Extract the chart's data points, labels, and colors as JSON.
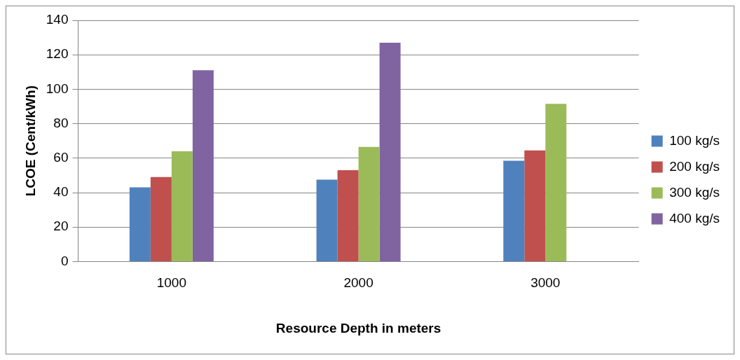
{
  "chart_data": {
    "type": "bar",
    "xlabel": "Resource Depth in meters",
    "ylabel": "LCOE (Cent/kWh)",
    "categories": [
      "1000",
      "2000",
      "3000"
    ],
    "series": [
      {
        "name": "100 kg/s",
        "color": "#4f81bd",
        "values": [
          43,
          47.5,
          58.5
        ]
      },
      {
        "name": "200 kg/s",
        "color": "#c0504d",
        "values": [
          49,
          53,
          64.5
        ]
      },
      {
        "name": "300 kg/s",
        "color": "#9bbb59",
        "values": [
          64,
          66.5,
          91.5
        ]
      },
      {
        "name": "400 kg/s",
        "color": "#8064a2",
        "values": [
          111,
          127,
          null
        ]
      }
    ],
    "ylim": [
      0,
      140
    ],
    "yticks": [
      0,
      20,
      40,
      60,
      80,
      100,
      120,
      140
    ],
    "grid": "y",
    "legend": "right"
  }
}
